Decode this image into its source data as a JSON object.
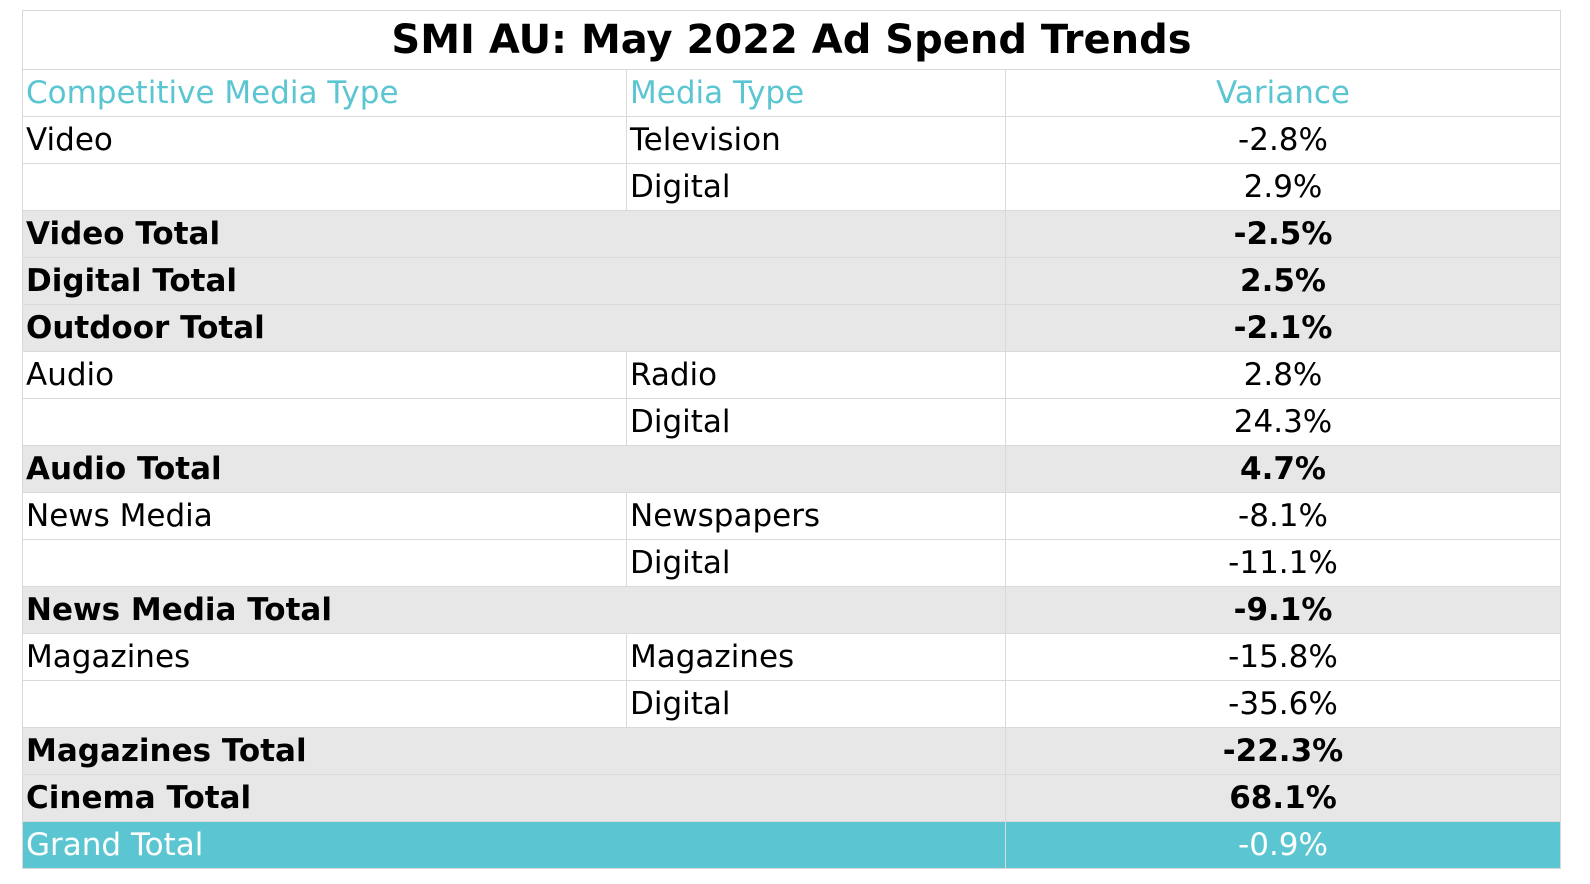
{
  "chart_data": {
    "type": "table",
    "title": "SMI AU: May 2022 Ad Spend Trends",
    "columns": [
      "Competitive Media Type",
      "Media Type",
      "Variance"
    ],
    "rows": [
      {
        "kind": "detail",
        "competitive_media_type": "Video",
        "media_type": "Television",
        "variance": "-2.8%"
      },
      {
        "kind": "detail",
        "competitive_media_type": "",
        "media_type": "Digital",
        "variance": "2.9%"
      },
      {
        "kind": "total",
        "competitive_media_type": "Video Total",
        "media_type": "",
        "variance": "-2.5%"
      },
      {
        "kind": "total",
        "competitive_media_type": "Digital Total",
        "media_type": "",
        "variance": "2.5%"
      },
      {
        "kind": "total",
        "competitive_media_type": "Outdoor Total",
        "media_type": "",
        "variance": "-2.1%"
      },
      {
        "kind": "detail",
        "competitive_media_type": "Audio",
        "media_type": "Radio",
        "variance": "2.8%"
      },
      {
        "kind": "detail",
        "competitive_media_type": "",
        "media_type": "Digital",
        "variance": "24.3%"
      },
      {
        "kind": "total",
        "competitive_media_type": "Audio Total",
        "media_type": "",
        "variance": "4.7%"
      },
      {
        "kind": "detail",
        "competitive_media_type": "News Media",
        "media_type": "Newspapers",
        "variance": "-8.1%"
      },
      {
        "kind": "detail",
        "competitive_media_type": "",
        "media_type": "Digital",
        "variance": "-11.1%"
      },
      {
        "kind": "total",
        "competitive_media_type": "News Media Total",
        "media_type": "",
        "variance": "-9.1%"
      },
      {
        "kind": "detail",
        "competitive_media_type": "Magazines",
        "media_type": "Magazines",
        "variance": "-15.8%"
      },
      {
        "kind": "detail",
        "competitive_media_type": "",
        "media_type": "Digital",
        "variance": "-35.6%"
      },
      {
        "kind": "total",
        "competitive_media_type": "Magazines Total",
        "media_type": "",
        "variance": "-22.3%"
      },
      {
        "kind": "total",
        "competitive_media_type": "Cinema Total",
        "media_type": "",
        "variance": "68.1%"
      },
      {
        "kind": "grand",
        "competitive_media_type": "Grand Total",
        "media_type": "",
        "variance": "-0.9%"
      }
    ]
  },
  "colors": {
    "accent": "#5bc6d2",
    "total_row_fill": "#e7e7e7",
    "grand_total_text": "#ffffff",
    "grid": "#d9d9d9"
  }
}
